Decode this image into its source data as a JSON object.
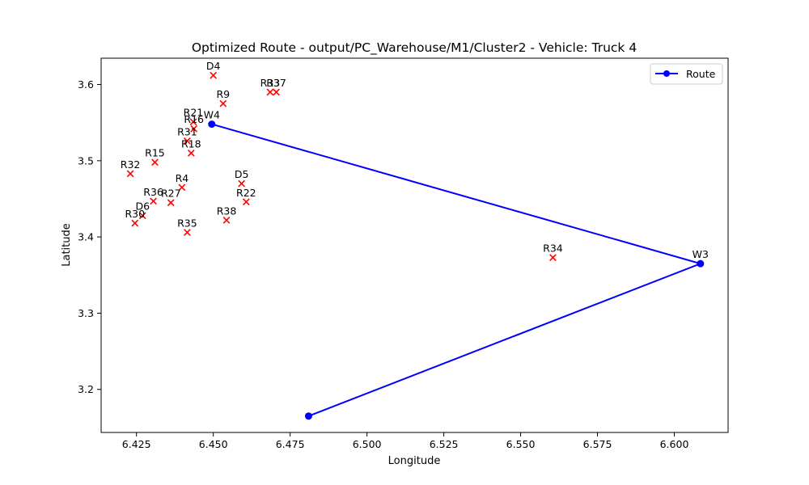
{
  "chart_data": {
    "type": "scatter",
    "title": "Optimized Route - output/PC_Warehouse/M1/Cluster2 - Vehicle: Truck 4",
    "xlabel": "Longitude",
    "ylabel": "Latitude",
    "xlim": [
      6.4135,
      6.6175
    ],
    "ylim": [
      3.1435,
      3.6345
    ],
    "xticks": [
      6.425,
      6.45,
      6.475,
      6.5,
      6.525,
      6.55,
      6.575,
      6.6
    ],
    "xtick_labels": [
      "6.425",
      "6.450",
      "6.475",
      "6.500",
      "6.525",
      "6.550",
      "6.575",
      "6.600"
    ],
    "yticks": [
      3.2,
      3.3,
      3.4,
      3.5,
      3.6
    ],
    "ytick_labels": [
      "3.2",
      "3.3",
      "3.4",
      "3.5",
      "3.6"
    ],
    "grid": false,
    "legend_position": "top-right",
    "colors": {
      "route": "#0000ff",
      "stops": "#ff0000"
    },
    "route": {
      "name": "Route",
      "x": [
        6.481,
        6.6085,
        6.4495
      ],
      "y": [
        3.165,
        3.365,
        3.548
      ],
      "markers": [
        "",
        "W3",
        "W4"
      ]
    },
    "points": [
      {
        "label": "D4",
        "x": 6.45,
        "y": 3.612
      },
      {
        "label": "R33",
        "x": 6.4685,
        "y": 3.59
      },
      {
        "label": "R37",
        "x": 6.4705,
        "y": 3.59
      },
      {
        "label": "R9",
        "x": 6.4532,
        "y": 3.575
      },
      {
        "label": "R21",
        "x": 6.4435,
        "y": 3.551
      },
      {
        "label": "R16",
        "x": 6.4437,
        "y": 3.542
      },
      {
        "label": "R31",
        "x": 6.4415,
        "y": 3.526
      },
      {
        "label": "R18",
        "x": 6.4428,
        "y": 3.51
      },
      {
        "label": "R15",
        "x": 6.431,
        "y": 3.498
      },
      {
        "label": "R32",
        "x": 6.423,
        "y": 3.483
      },
      {
        "label": "D5",
        "x": 6.4592,
        "y": 3.47
      },
      {
        "label": "R4",
        "x": 6.4398,
        "y": 3.465
      },
      {
        "label": "R22",
        "x": 6.4607,
        "y": 3.446
      },
      {
        "label": "R36",
        "x": 6.4305,
        "y": 3.447
      },
      {
        "label": "R27",
        "x": 6.4362,
        "y": 3.445
      },
      {
        "label": "D6",
        "x": 6.427,
        "y": 3.428
      },
      {
        "label": "R38",
        "x": 6.4543,
        "y": 3.422
      },
      {
        "label": "R30",
        "x": 6.4245,
        "y": 3.418
      },
      {
        "label": "R35",
        "x": 6.4415,
        "y": 3.406
      },
      {
        "label": "R34",
        "x": 6.5605,
        "y": 3.373
      }
    ]
  }
}
